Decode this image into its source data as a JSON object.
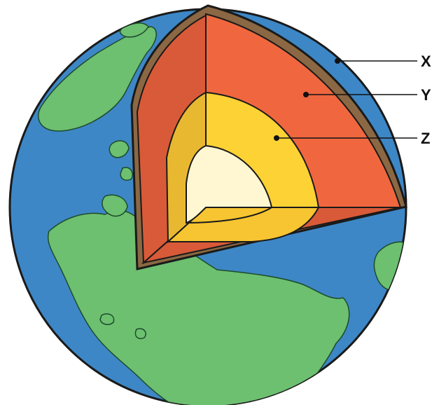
{
  "labels": {
    "x": "X",
    "y": "Y",
    "z": "Z"
  },
  "colors": {
    "ocean": "#3d87c6",
    "land": "#6cc070",
    "crust": "#8b6843",
    "mantle": "#f0673f",
    "mantle_side": "#d95a38",
    "outer_core": "#fdd234",
    "outer_core_side": "#e8b831",
    "inner_core": "#fef7d2",
    "outline": "#1a1a1a"
  }
}
